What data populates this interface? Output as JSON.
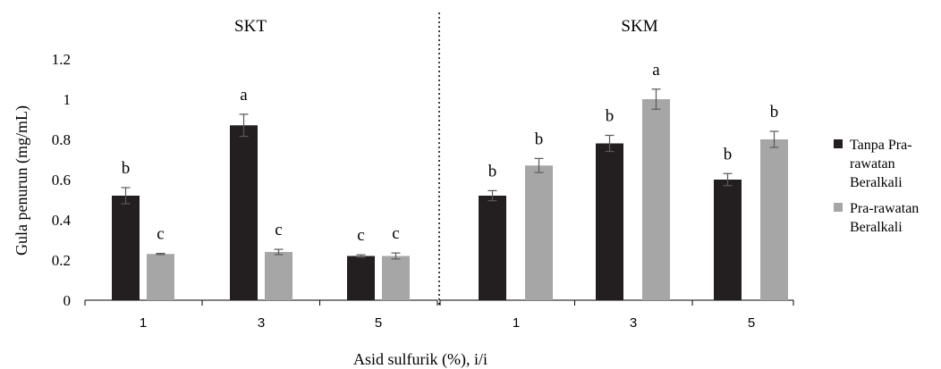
{
  "chart_data": {
    "type": "bar",
    "ylabel": "Gula penurun  (mg/mL)",
    "xlabel": "Asid sulfurik (%), i/i",
    "ylim": [
      0,
      1.2
    ],
    "yticks": [
      "0",
      "0.2",
      "0.4",
      "0.6",
      "0.8",
      "1",
      "1.2"
    ],
    "grid": false,
    "legend_position": "right",
    "legend": [
      {
        "lines": [
          "Tanpa Pra-",
          "rawatan",
          "Beralkali"
        ],
        "color": "#231f20"
      },
      {
        "lines": [
          "Pra-rawatan",
          "Beralkali"
        ],
        "color": "#a6a6a6"
      }
    ],
    "panels": [
      {
        "title": "SKT",
        "categories": [
          "1",
          "3",
          "5"
        ],
        "series": [
          {
            "values": [
              0.52,
              0.87,
              0.22
            ],
            "errors": [
              0.04,
              0.055,
              0.006
            ],
            "labels": [
              "b",
              "a",
              "c"
            ],
            "color": "#231f20"
          },
          {
            "values": [
              0.23,
              0.24,
              0.22
            ],
            "errors": [
              0.003,
              0.013,
              0.015
            ],
            "labels": [
              "c",
              "c",
              "c"
            ],
            "color": "#a6a6a6"
          }
        ]
      },
      {
        "title": "SKM",
        "categories": [
          "1",
          "3",
          "5"
        ],
        "series": [
          {
            "values": [
              0.52,
              0.78,
              0.6
            ],
            "errors": [
              0.025,
              0.04,
              0.03
            ],
            "labels": [
              "b",
              "b",
              "b"
            ],
            "color": "#231f20"
          },
          {
            "values": [
              0.67,
              1.0,
              0.8
            ],
            "errors": [
              0.035,
              0.05,
              0.04
            ],
            "labels": [
              "b",
              "a",
              "b"
            ],
            "color": "#a6a6a6"
          }
        ]
      }
    ]
  }
}
